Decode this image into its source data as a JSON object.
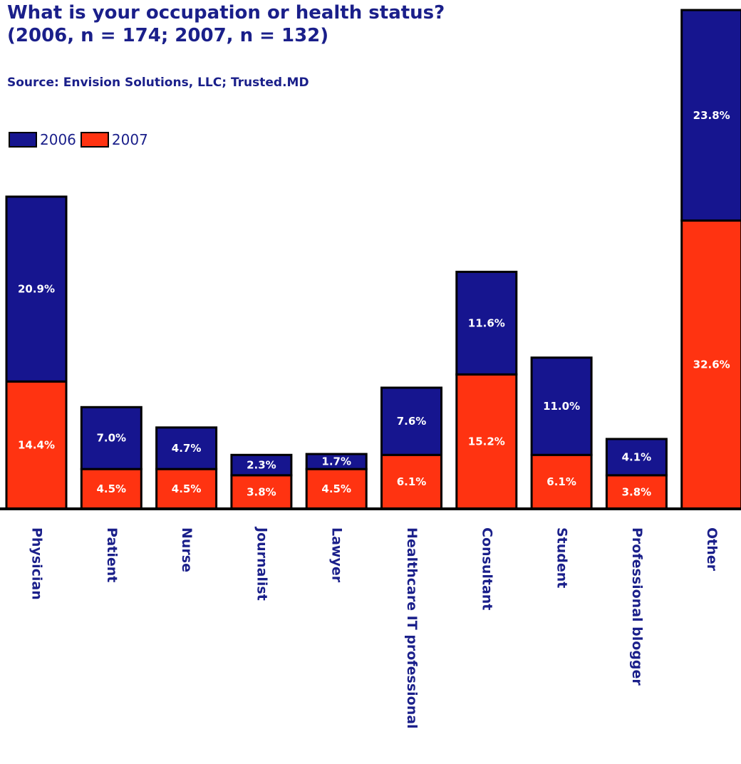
{
  "chart_data": {
    "type": "bar",
    "stacked": true,
    "title": "What is your occupation or health status?",
    "subtitle": "(2006, n = 174; 2007, n = 132)",
    "source": "Source: Envision Solutions, LLC; Trusted.MD",
    "categories": [
      "Physician",
      "Patient",
      "Nurse",
      "Journalist",
      "Lawyer",
      "Healthcare IT professional",
      "Consultant",
      "Student",
      "Professional blogger",
      "Other"
    ],
    "series": [
      {
        "name": "2006",
        "color": "#16158f",
        "values": [
          20.9,
          7.0,
          4.7,
          2.3,
          1.7,
          7.6,
          11.6,
          11.0,
          4.1,
          23.8
        ],
        "labels": [
          "20.9%",
          "7.0%",
          "4.7%",
          "2.3%",
          "1.7%",
          "7.6%",
          "11.6%",
          "11.0%",
          "4.1%",
          "23.8%"
        ]
      },
      {
        "name": "2007",
        "color": "#ff3311",
        "values": [
          14.4,
          4.5,
          4.5,
          3.8,
          4.5,
          6.1,
          15.2,
          6.1,
          3.8,
          32.6
        ],
        "labels": [
          "14.4%",
          "4.5%",
          "4.5%",
          "3.8%",
          "4.5%",
          "6.1%",
          "15.2%",
          "6.1%",
          "3.8%",
          "32.6%"
        ]
      }
    ],
    "legend_position": "top-left",
    "grid": false,
    "ylim": [
      0,
      60
    ]
  }
}
